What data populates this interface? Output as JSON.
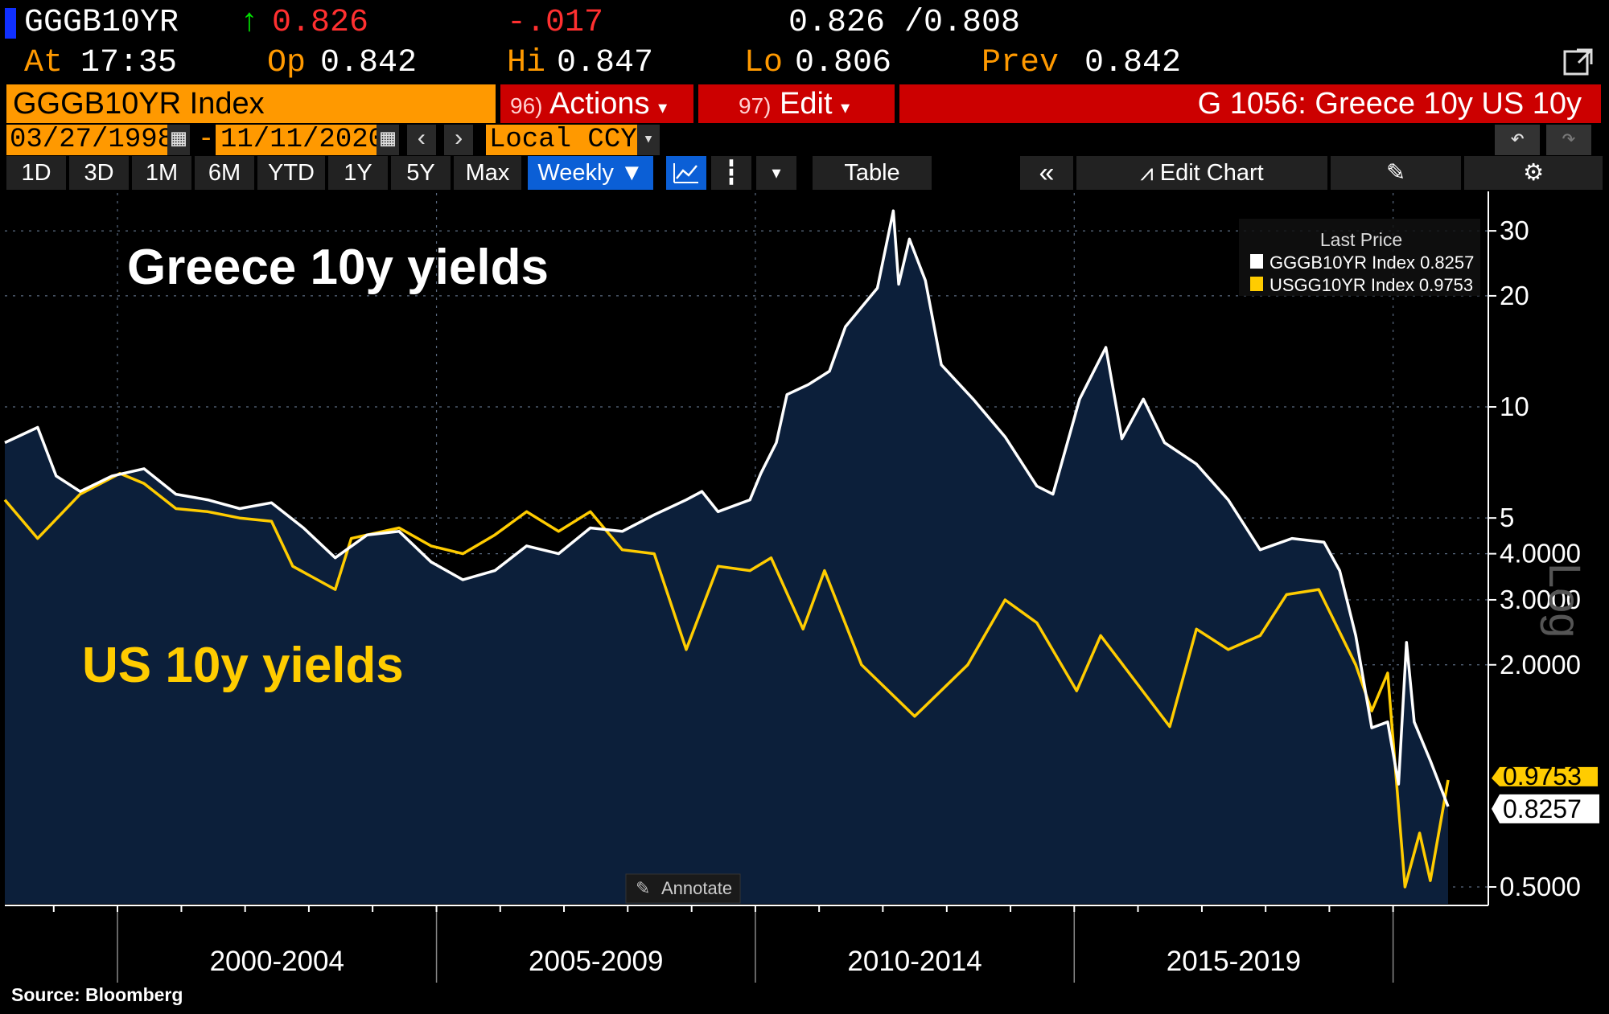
{
  "header": {
    "ticker": "GGGB10YR",
    "up_arrow": "↑",
    "last": "0.826",
    "change": "-.017",
    "bid_ask": "0.826 /0.808",
    "at_label": "At",
    "time": "17:35",
    "open_label": "Op",
    "open": "0.842",
    "high_label": "Hi",
    "high": "0.847",
    "low_label": "Lo",
    "low": "0.806",
    "prev_label": "Prev",
    "prev": "0.842"
  },
  "command_bar": {
    "security": "GGGB10YR Index",
    "actions_num": "96)",
    "actions": "Actions",
    "edit_num": "97)",
    "edit": "Edit",
    "chart_title": "G 1056: Greece 10y US 10y"
  },
  "date_bar": {
    "start": "03/27/1998",
    "dash": "-",
    "end": "11/11/2020",
    "currency": "Local CCY"
  },
  "toolbar": {
    "periods": [
      "1D",
      "3D",
      "1M",
      "6M",
      "YTD",
      "1Y",
      "5Y",
      "Max"
    ],
    "frequency": "Weekly ▼",
    "table": "Table",
    "edit_chart": "Edit Chart"
  },
  "colors": {
    "greece": "#ffffff",
    "us": "#ffcc00",
    "fill": "#0c1f3a",
    "orange": "#ff9900",
    "red": "#cc0000"
  },
  "legend": {
    "title": "Last Price",
    "items": [
      "GGGB10YR Index 0.8257",
      "USGG10YR Index 0.9753"
    ]
  },
  "annotations": {
    "greece": "Greece 10y yields",
    "us": "US 10y yields"
  },
  "annotate_button": "Annotate",
  "log_label": "Log",
  "source": "Source: Bloomberg",
  "chart_data": {
    "type": "line",
    "title": "G 1056: Greece 10y US 10y",
    "y_scale": "log",
    "ylim": [
      0.45,
      38
    ],
    "x_range": [
      "1998-03-27",
      "2020-11-11"
    ],
    "x_tick_labels": [
      "2000-2004",
      "2005-2009",
      "2010-2014",
      "2015-2019"
    ],
    "y_tick_labels": [
      "30",
      "20",
      "10",
      "5",
      "4.0000",
      "3.0000",
      "2.0000",
      "0.5000"
    ],
    "y_tick_values": [
      30,
      20,
      10,
      5,
      4,
      3,
      2,
      0.5
    ],
    "last_value_labels": [
      "0.9753",
      "0.8257"
    ],
    "legend_position": "top-right",
    "grid": true,
    "series": [
      {
        "name": "GGGB10YR Index",
        "color": "#ffffff",
        "filled": true,
        "points": [
          [
            "1998-03-27",
            8.0
          ],
          [
            "1998-10-01",
            8.8
          ],
          [
            "1999-01-15",
            6.5
          ],
          [
            "1999-06-01",
            5.9
          ],
          [
            "1999-12-01",
            6.5
          ],
          [
            "2000-06-01",
            6.8
          ],
          [
            "2000-12-01",
            5.8
          ],
          [
            "2001-06-01",
            5.6
          ],
          [
            "2001-12-01",
            5.3
          ],
          [
            "2002-06-01",
            5.5
          ],
          [
            "2002-12-01",
            4.7
          ],
          [
            "2003-06-01",
            3.9
          ],
          [
            "2003-12-01",
            4.5
          ],
          [
            "2004-06-01",
            4.6
          ],
          [
            "2004-12-01",
            3.8
          ],
          [
            "2005-06-01",
            3.4
          ],
          [
            "2005-12-01",
            3.6
          ],
          [
            "2006-06-01",
            4.2
          ],
          [
            "2006-12-01",
            4.0
          ],
          [
            "2007-06-01",
            4.7
          ],
          [
            "2007-12-01",
            4.6
          ],
          [
            "2008-06-01",
            5.1
          ],
          [
            "2008-12-01",
            5.6
          ],
          [
            "2009-03-01",
            5.9
          ],
          [
            "2009-06-01",
            5.2
          ],
          [
            "2009-12-01",
            5.6
          ],
          [
            "2010-02-01",
            6.6
          ],
          [
            "2010-05-01",
            8.0
          ],
          [
            "2010-07-01",
            10.8
          ],
          [
            "2010-11-01",
            11.5
          ],
          [
            "2011-03-01",
            12.5
          ],
          [
            "2011-06-01",
            16.5
          ],
          [
            "2011-12-01",
            21.0
          ],
          [
            "2012-03-01",
            34.0
          ],
          [
            "2012-04-01",
            21.5
          ],
          [
            "2012-06-01",
            28.5
          ],
          [
            "2012-09-01",
            22.0
          ],
          [
            "2012-12-01",
            13.0
          ],
          [
            "2013-06-01",
            10.5
          ],
          [
            "2013-12-01",
            8.3
          ],
          [
            "2014-06-01",
            6.1
          ],
          [
            "2014-09-01",
            5.8
          ],
          [
            "2015-02-01",
            10.5
          ],
          [
            "2015-07-01",
            14.5
          ],
          [
            "2015-10-01",
            8.2
          ],
          [
            "2016-02-01",
            10.5
          ],
          [
            "2016-06-01",
            8.0
          ],
          [
            "2016-12-01",
            7.0
          ],
          [
            "2017-06-01",
            5.6
          ],
          [
            "2017-12-01",
            4.1
          ],
          [
            "2018-06-01",
            4.4
          ],
          [
            "2018-12-01",
            4.3
          ],
          [
            "2019-03-01",
            3.6
          ],
          [
            "2019-06-01",
            2.4
          ],
          [
            "2019-09-01",
            1.35
          ],
          [
            "2019-12-01",
            1.4
          ],
          [
            "2020-02-01",
            0.95
          ],
          [
            "2020-03-18",
            2.3
          ],
          [
            "2020-05-01",
            1.4
          ],
          [
            "2020-08-01",
            1.1
          ],
          [
            "2020-11-11",
            0.8257
          ]
        ]
      },
      {
        "name": "USGG10YR Index",
        "color": "#ffcc00",
        "filled": false,
        "points": [
          [
            "1998-03-27",
            5.6
          ],
          [
            "1998-10-01",
            4.4
          ],
          [
            "1999-06-01",
            5.8
          ],
          [
            "2000-01-15",
            6.6
          ],
          [
            "2000-06-01",
            6.2
          ],
          [
            "2000-12-01",
            5.3
          ],
          [
            "2001-06-01",
            5.2
          ],
          [
            "2001-12-01",
            5.0
          ],
          [
            "2002-06-01",
            4.9
          ],
          [
            "2002-10-01",
            3.7
          ],
          [
            "2003-06-01",
            3.2
          ],
          [
            "2003-09-01",
            4.4
          ],
          [
            "2004-06-01",
            4.7
          ],
          [
            "2004-12-01",
            4.2
          ],
          [
            "2005-06-01",
            4.0
          ],
          [
            "2005-12-01",
            4.5
          ],
          [
            "2006-06-01",
            5.2
          ],
          [
            "2006-12-01",
            4.6
          ],
          [
            "2007-06-01",
            5.2
          ],
          [
            "2007-12-01",
            4.1
          ],
          [
            "2008-06-01",
            4.0
          ],
          [
            "2008-12-01",
            2.2
          ],
          [
            "2009-06-01",
            3.7
          ],
          [
            "2009-12-01",
            3.6
          ],
          [
            "2010-04-01",
            3.9
          ],
          [
            "2010-10-01",
            2.5
          ],
          [
            "2011-02-01",
            3.6
          ],
          [
            "2011-09-01",
            2.0
          ],
          [
            "2012-07-01",
            1.45
          ],
          [
            "2013-05-01",
            2.0
          ],
          [
            "2013-12-01",
            3.0
          ],
          [
            "2014-06-01",
            2.6
          ],
          [
            "2015-01-15",
            1.7
          ],
          [
            "2015-06-01",
            2.4
          ],
          [
            "2016-07-01",
            1.36
          ],
          [
            "2016-12-01",
            2.5
          ],
          [
            "2017-06-01",
            2.2
          ],
          [
            "2017-12-01",
            2.4
          ],
          [
            "2018-05-01",
            3.1
          ],
          [
            "2018-11-01",
            3.2
          ],
          [
            "2019-06-01",
            2.0
          ],
          [
            "2019-09-01",
            1.5
          ],
          [
            "2019-12-01",
            1.9
          ],
          [
            "2020-03-09",
            0.5
          ],
          [
            "2020-06-01",
            0.7
          ],
          [
            "2020-08-01",
            0.52
          ],
          [
            "2020-11-11",
            0.9753
          ]
        ]
      }
    ]
  }
}
